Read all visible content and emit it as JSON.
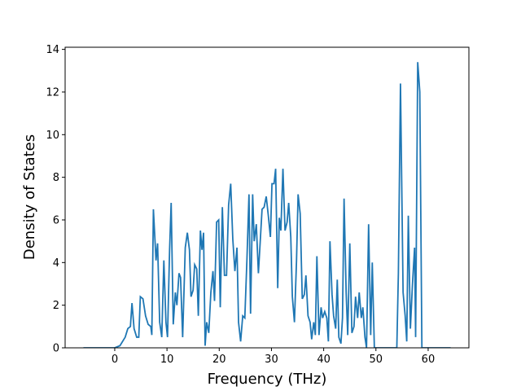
{
  "chart_data": {
    "type": "line",
    "xlabel": "Frequency (THz)",
    "ylabel": "Density of States",
    "x": [
      -6,
      0,
      1,
      2,
      2.5,
      3,
      3.3,
      3.7,
      4.2,
      4.6,
      4.9,
      5.4,
      5.9,
      6.4,
      6.9,
      7.1,
      7.4,
      7.9,
      8.2,
      8.6,
      9.0,
      9.4,
      9.8,
      10.1,
      10.5,
      10.8,
      11.2,
      11.6,
      11.9,
      12.3,
      12.6,
      13.0,
      13.5,
      13.9,
      14.3,
      14.6,
      15.0,
      15.3,
      15.7,
      16.0,
      16.4,
      16.7,
      17.0,
      17.3,
      17.6,
      18.0,
      18.4,
      18.8,
      19.1,
      19.5,
      19.9,
      20.2,
      20.6,
      21.0,
      21.4,
      21.8,
      22.2,
      22.6,
      23.0,
      23.4,
      23.7,
      24.1,
      24.5,
      24.9,
      25.3,
      25.7,
      26.0,
      26.4,
      26.7,
      27.1,
      27.5,
      27.9,
      28.2,
      28.6,
      29.0,
      29.4,
      29.8,
      30.1,
      30.5,
      30.8,
      31.2,
      31.5,
      31.8,
      32.2,
      32.6,
      33.0,
      33.3,
      33.7,
      34.0,
      34.4,
      34.8,
      35.1,
      35.5,
      35.9,
      36.3,
      36.6,
      37.0,
      37.4,
      37.7,
      38.1,
      38.4,
      38.7,
      39.1,
      39.5,
      39.8,
      40.2,
      40.6,
      40.9,
      41.2,
      41.6,
      41.9,
      42.3,
      42.6,
      42.9,
      43.3,
      43.6,
      43.9,
      44.3,
      44.6,
      45.0,
      45.4,
      45.8,
      46.1,
      46.5,
      46.8,
      47.2,
      47.5,
      47.9,
      48.2,
      48.6,
      49.0,
      49.3,
      49.7,
      50.5,
      54.0,
      54.3,
      54.7,
      55.2,
      55.6,
      55.9,
      56.2,
      56.6,
      57.0,
      57.4,
      57.6,
      58.0,
      58.4,
      58.8,
      64.3
    ],
    "series": [
      {
        "color": "#1f77b4",
        "values": [
          0,
          0,
          0.1,
          0.5,
          0.9,
          1.0,
          2.1,
          0.9,
          0.5,
          0.5,
          2.4,
          2.3,
          1.5,
          1.1,
          1.0,
          0.6,
          6.5,
          4.1,
          4.9,
          1.2,
          0.5,
          4.1,
          1.2,
          0.5,
          4.6,
          6.8,
          1.1,
          2.6,
          2.0,
          3.5,
          3.3,
          0.5,
          4.7,
          5.4,
          4.6,
          2.4,
          2.7,
          3.9,
          3.7,
          1.5,
          5.5,
          4.6,
          5.4,
          0.1,
          1.2,
          0.7,
          2.6,
          3.6,
          2.2,
          5.9,
          6.0,
          1.9,
          6.6,
          3.4,
          3.4,
          6.7,
          7.7,
          5.1,
          3.6,
          4.7,
          1.2,
          0.3,
          1.5,
          1.4,
          4.1,
          7.2,
          1.6,
          7.2,
          5.0,
          5.8,
          3.5,
          5.2,
          6.5,
          6.6,
          7.1,
          6.2,
          5.2,
          7.7,
          7.7,
          8.4,
          2.8,
          6.1,
          5.5,
          8.4,
          5.5,
          5.9,
          6.8,
          5.2,
          2.4,
          1.2,
          4.1,
          7.2,
          6.3,
          2.3,
          2.5,
          3.4,
          1.5,
          1.2,
          0.4,
          1.2,
          0.6,
          4.3,
          0.6,
          1.9,
          1.4,
          1.7,
          1.4,
          0.3,
          5.0,
          2.5,
          1.5,
          0.9,
          3.2,
          0.5,
          0.2,
          1.4,
          7.0,
          2.6,
          0.6,
          4.9,
          0.7,
          1.0,
          2.4,
          1.4,
          2.6,
          1.4,
          1.9,
          0.5,
          0,
          5.8,
          0.6,
          4.0,
          0,
          0,
          0,
          3.5,
          12.4,
          2.6,
          1.5,
          0.3,
          6.2,
          0.9,
          3.0,
          4.7,
          0.5,
          13.4,
          12.0,
          0,
          0
        ]
      }
    ],
    "xlim": [
      -9.5,
      67.8
    ],
    "ylim": [
      0,
      14.1
    ],
    "xticks": [
      0,
      10,
      20,
      30,
      40,
      50,
      60
    ],
    "yticks": [
      0,
      2,
      4,
      6,
      8,
      10,
      12,
      14
    ]
  }
}
